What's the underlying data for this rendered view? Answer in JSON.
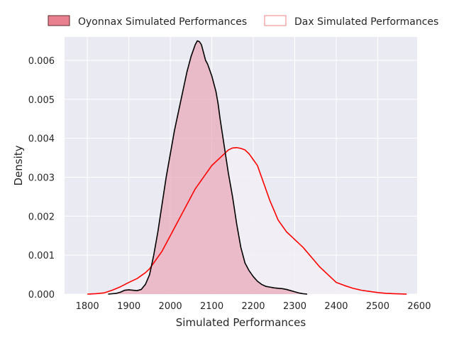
{
  "chart_data": {
    "type": "area",
    "title": "",
    "xlabel": "Simulated Performances",
    "ylabel": "Density",
    "xlim": [
      1745,
      2595
    ],
    "ylim": [
      0,
      0.0066
    ],
    "xticks": [
      1800,
      1900,
      2000,
      2100,
      2200,
      2300,
      2400,
      2500,
      2600
    ],
    "xtick_labels": [
      "1800",
      "1900",
      "2000",
      "2100",
      "2200",
      "2300",
      "2400",
      "2500",
      "2600"
    ],
    "yticks": [
      0,
      0.001,
      0.002,
      0.003,
      0.004,
      0.005,
      0.006
    ],
    "ytick_labels": [
      "0.000",
      "0.001",
      "0.002",
      "0.003",
      "0.004",
      "0.005",
      "0.006"
    ],
    "grid": true,
    "legend_position": "top",
    "legend": [
      "Oyonnax Simulated Performances",
      "Dax Simulated Performances"
    ],
    "series": [
      {
        "name": "Oyonnax Simulated Performances",
        "fill": true,
        "fill_color": "#e8a0b0",
        "line_color": "#000000",
        "legend_face": "#e8808f",
        "legend_edge": "#5a2a2a",
        "x": [
          1850,
          1870,
          1880,
          1890,
          1900,
          1910,
          1920,
          1930,
          1940,
          1950,
          1960,
          1970,
          1980,
          1990,
          2000,
          2010,
          2020,
          2030,
          2040,
          2050,
          2060,
          2065,
          2070,
          2075,
          2080,
          2085,
          2090,
          2100,
          2110,
          2115,
          2120,
          2130,
          2140,
          2150,
          2160,
          2170,
          2180,
          2190,
          2200,
          2210,
          2220,
          2230,
          2240,
          2250,
          2260,
          2270,
          2280,
          2290,
          2300,
          2310,
          2320,
          2330
        ],
        "y": [
          0,
          2e-05,
          5e-05,
          0.0001,
          0.00011,
          0.0001,
          9e-05,
          0.00012,
          0.00025,
          0.0005,
          0.001,
          0.0016,
          0.0023,
          0.003,
          0.0036,
          0.0042,
          0.0047,
          0.0052,
          0.0057,
          0.0061,
          0.0064,
          0.0065,
          0.00648,
          0.0064,
          0.0062,
          0.006,
          0.0059,
          0.0056,
          0.0052,
          0.0049,
          0.0045,
          0.0038,
          0.0031,
          0.0025,
          0.0018,
          0.0012,
          0.0008,
          0.0006,
          0.00045,
          0.00033,
          0.00025,
          0.0002,
          0.00018,
          0.00016,
          0.00015,
          0.00014,
          0.00012,
          9e-05,
          6e-05,
          3e-05,
          1e-05,
          0
        ]
      },
      {
        "name": "Dax Simulated Performances",
        "fill": true,
        "fill_color": "#f2eef6",
        "line_color": "#ff0000",
        "legend_face": "#ffffff",
        "legend_edge": "#f08080",
        "x": [
          1800,
          1820,
          1840,
          1860,
          1880,
          1900,
          1920,
          1940,
          1950,
          1960,
          1980,
          2000,
          2020,
          2040,
          2060,
          2080,
          2100,
          2120,
          2140,
          2150,
          2160,
          2170,
          2180,
          2190,
          2200,
          2210,
          2220,
          2240,
          2260,
          2280,
          2300,
          2320,
          2340,
          2360,
          2380,
          2400,
          2420,
          2440,
          2460,
          2480,
          2500,
          2520,
          2540,
          2560,
          2570
        ],
        "y": [
          0,
          1e-05,
          3e-05,
          0.0001,
          0.00019,
          0.0003,
          0.0004,
          0.00055,
          0.00065,
          0.0008,
          0.0011,
          0.0015,
          0.0019,
          0.0023,
          0.0027,
          0.003,
          0.0033,
          0.0035,
          0.0037,
          0.00375,
          0.00376,
          0.00374,
          0.0037,
          0.0036,
          0.00345,
          0.0033,
          0.003,
          0.0024,
          0.0019,
          0.0016,
          0.0014,
          0.0012,
          0.00095,
          0.0007,
          0.0005,
          0.0003,
          0.00022,
          0.00015,
          0.0001,
          7e-05,
          4e-05,
          2e-05,
          1e-05,
          4e-06,
          0
        ]
      }
    ]
  }
}
